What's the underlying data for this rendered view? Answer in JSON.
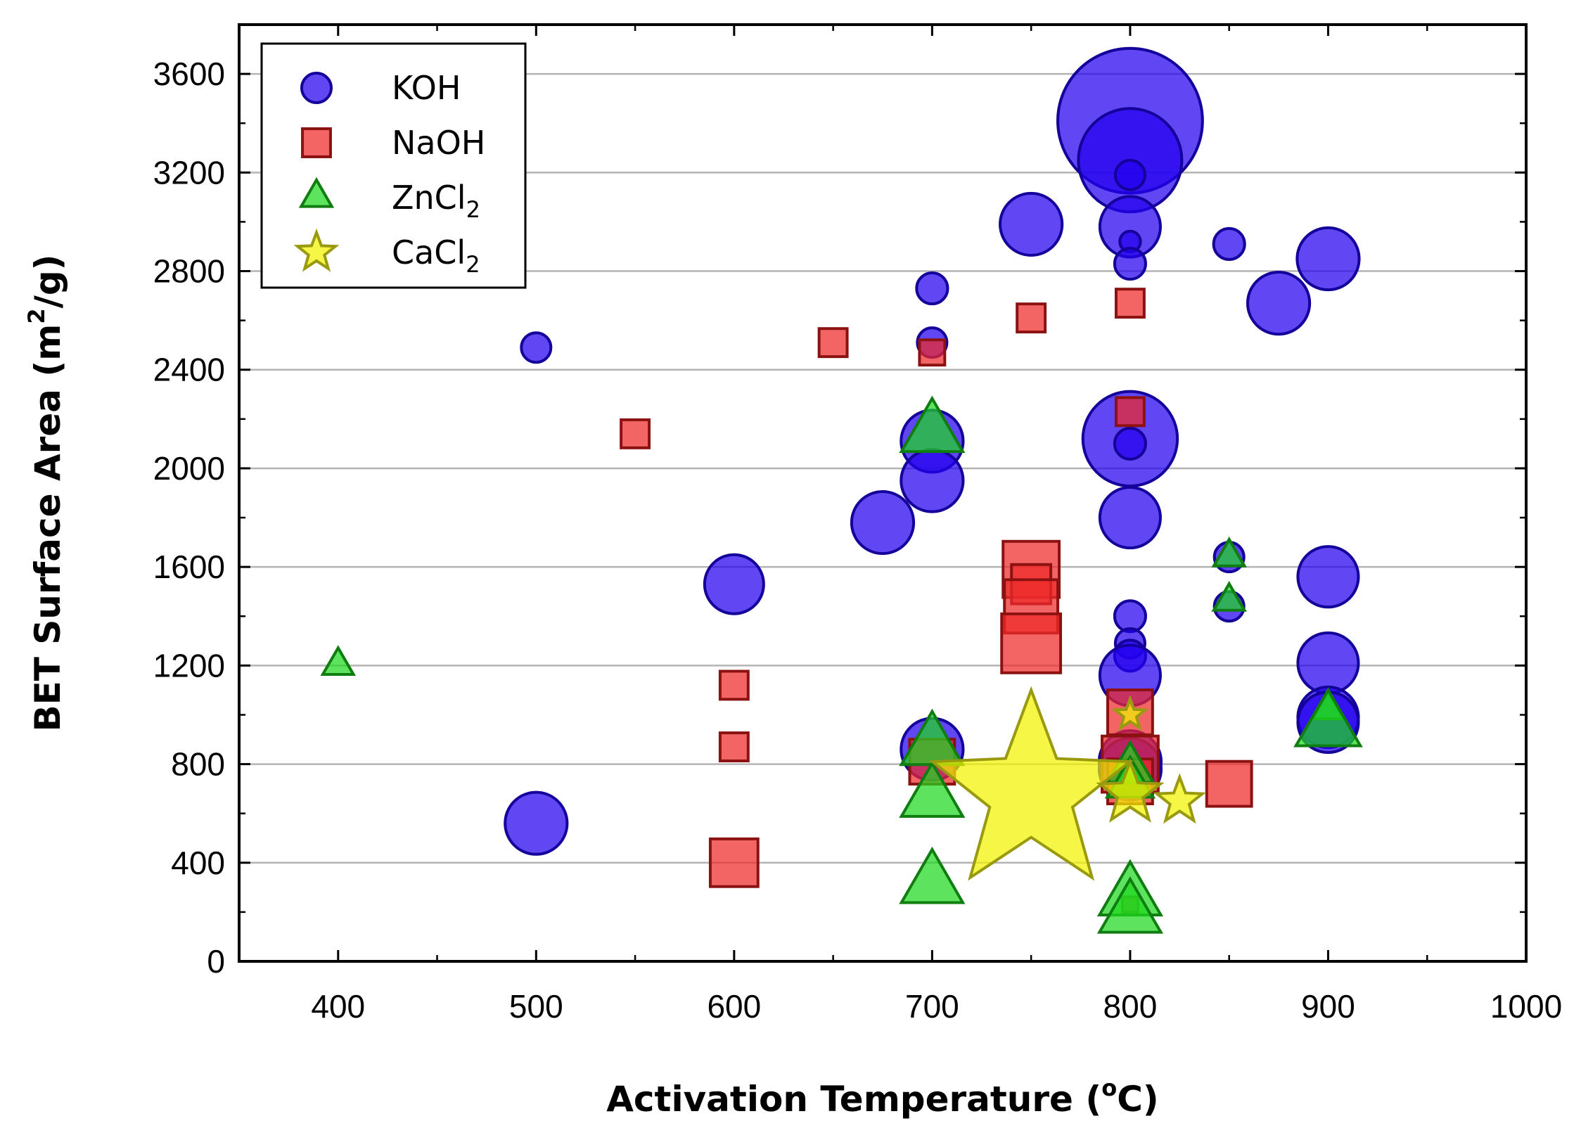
{
  "chart_data": {
    "type": "scatter",
    "title": "",
    "xlabel": "Activation Temperature (",
    "xlabel_sup": "o",
    "xlabel_end": "C)",
    "ylabel": "BET Surface Area (m",
    "ylabel_sup": "2",
    "ylabel_end": "/g)",
    "xlim": [
      350,
      1000
    ],
    "ylim": [
      0,
      3800
    ],
    "xticks": [
      400,
      500,
      600,
      700,
      800,
      900,
      1000
    ],
    "yticks": [
      0,
      400,
      800,
      1200,
      1600,
      2000,
      2400,
      2800,
      3200,
      3600
    ],
    "grid": "horizontal",
    "legend_position": "top-left",
    "series": [
      {
        "name": "KOH",
        "label_main": "KOH",
        "label_sub": "",
        "marker": "circle",
        "color": "#2200ee",
        "edge": "#14009a",
        "points": [
          {
            "x": 500,
            "y": 2490,
            "s": 1.0
          },
          {
            "x": 500,
            "y": 560,
            "s": 2.1
          },
          {
            "x": 600,
            "y": 1530,
            "s": 2.0
          },
          {
            "x": 675,
            "y": 1780,
            "s": 2.1
          },
          {
            "x": 700,
            "y": 2730,
            "s": 1.05
          },
          {
            "x": 700,
            "y": 2510,
            "s": 1.0
          },
          {
            "x": 700,
            "y": 2110,
            "s": 2.1
          },
          {
            "x": 700,
            "y": 1950,
            "s": 2.1
          },
          {
            "x": 700,
            "y": 860,
            "s": 2.1
          },
          {
            "x": 750,
            "y": 2990,
            "s": 2.1
          },
          {
            "x": 800,
            "y": 3410,
            "s": 4.9
          },
          {
            "x": 800,
            "y": 3250,
            "s": 3.5
          },
          {
            "x": 800,
            "y": 3190,
            "s": 1.0
          },
          {
            "x": 800,
            "y": 2980,
            "s": 2.05
          },
          {
            "x": 800,
            "y": 2920,
            "s": 0.7
          },
          {
            "x": 800,
            "y": 2830,
            "s": 1.05
          },
          {
            "x": 800,
            "y": 2120,
            "s": 3.2
          },
          {
            "x": 800,
            "y": 2100,
            "s": 1.05
          },
          {
            "x": 800,
            "y": 1800,
            "s": 2.05
          },
          {
            "x": 800,
            "y": 1400,
            "s": 1.05
          },
          {
            "x": 800,
            "y": 1290,
            "s": 1.0
          },
          {
            "x": 800,
            "y": 1240,
            "s": 1.05
          },
          {
            "x": 800,
            "y": 1160,
            "s": 2.05
          },
          {
            "x": 800,
            "y": 810,
            "s": 2.1
          },
          {
            "x": 800,
            "y": 780,
            "s": 2.1
          },
          {
            "x": 850,
            "y": 2910,
            "s": 1.05
          },
          {
            "x": 850,
            "y": 1640,
            "s": 1.0
          },
          {
            "x": 850,
            "y": 1440,
            "s": 1.0
          },
          {
            "x": 875,
            "y": 2670,
            "s": 2.1
          },
          {
            "x": 900,
            "y": 2850,
            "s": 2.1
          },
          {
            "x": 900,
            "y": 1560,
            "s": 2.05
          },
          {
            "x": 900,
            "y": 1210,
            "s": 2.05
          },
          {
            "x": 900,
            "y": 990,
            "s": 2.05
          },
          {
            "x": 900,
            "y": 970,
            "s": 2.05
          }
        ]
      },
      {
        "name": "NaOH",
        "label_main": "NaOH",
        "label_sub": "",
        "marker": "square",
        "color": "#ee2a2a",
        "edge": "#8c1212",
        "points": [
          {
            "x": 550,
            "y": 2140,
            "s": 1.0
          },
          {
            "x": 600,
            "y": 1120,
            "s": 1.0
          },
          {
            "x": 600,
            "y": 870,
            "s": 1.0
          },
          {
            "x": 600,
            "y": 400,
            "s": 1.7
          },
          {
            "x": 650,
            "y": 2510,
            "s": 1.0
          },
          {
            "x": 700,
            "y": 2470,
            "s": 0.9
          },
          {
            "x": 700,
            "y": 810,
            "s": 1.6
          },
          {
            "x": 750,
            "y": 2610,
            "s": 1.0
          },
          {
            "x": 750,
            "y": 1590,
            "s": 2.0
          },
          {
            "x": 750,
            "y": 1530,
            "s": 1.4
          },
          {
            "x": 750,
            "y": 1440,
            "s": 1.9
          },
          {
            "x": 750,
            "y": 1290,
            "s": 2.1
          },
          {
            "x": 800,
            "y": 2670,
            "s": 1.0
          },
          {
            "x": 800,
            "y": 2230,
            "s": 1.0
          },
          {
            "x": 800,
            "y": 1010,
            "s": 1.6
          },
          {
            "x": 800,
            "y": 800,
            "s": 2.0
          },
          {
            "x": 800,
            "y": 730,
            "s": 1.6
          },
          {
            "x": 800,
            "y": 230,
            "s": 0.55
          },
          {
            "x": 850,
            "y": 720,
            "s": 1.6
          }
        ]
      },
      {
        "name": "ZnCl2",
        "label_main": "ZnCl",
        "label_sub": "2",
        "marker": "triangle",
        "color": "#1ed81e",
        "edge": "#0f7d0f",
        "points": [
          {
            "x": 400,
            "y": 1200,
            "s": 1.0
          },
          {
            "x": 700,
            "y": 2140,
            "s": 2.0
          },
          {
            "x": 700,
            "y": 870,
            "s": 2.0
          },
          {
            "x": 700,
            "y": 660,
            "s": 2.0
          },
          {
            "x": 700,
            "y": 310,
            "s": 2.0
          },
          {
            "x": 800,
            "y": 780,
            "s": 1.5
          },
          {
            "x": 800,
            "y": 720,
            "s": 1.5
          },
          {
            "x": 800,
            "y": 260,
            "s": 2.0
          },
          {
            "x": 800,
            "y": 190,
            "s": 2.0
          },
          {
            "x": 850,
            "y": 1640,
            "s": 1.0
          },
          {
            "x": 850,
            "y": 1460,
            "s": 1.0
          },
          {
            "x": 900,
            "y": 1020,
            "s": 1.0
          },
          {
            "x": 900,
            "y": 950,
            "s": 2.1
          }
        ]
      },
      {
        "name": "CaCl2",
        "label_main": "CaCl",
        "label_sub": "2",
        "marker": "star",
        "color": "#f2f200",
        "edge": "#9a9a10",
        "points": [
          {
            "x": 750,
            "y": 680,
            "s": 5.2
          },
          {
            "x": 800,
            "y": 1000,
            "s": 0.8
          },
          {
            "x": 800,
            "y": 680,
            "s": 1.6
          },
          {
            "x": 825,
            "y": 650,
            "s": 1.2
          }
        ]
      }
    ]
  }
}
